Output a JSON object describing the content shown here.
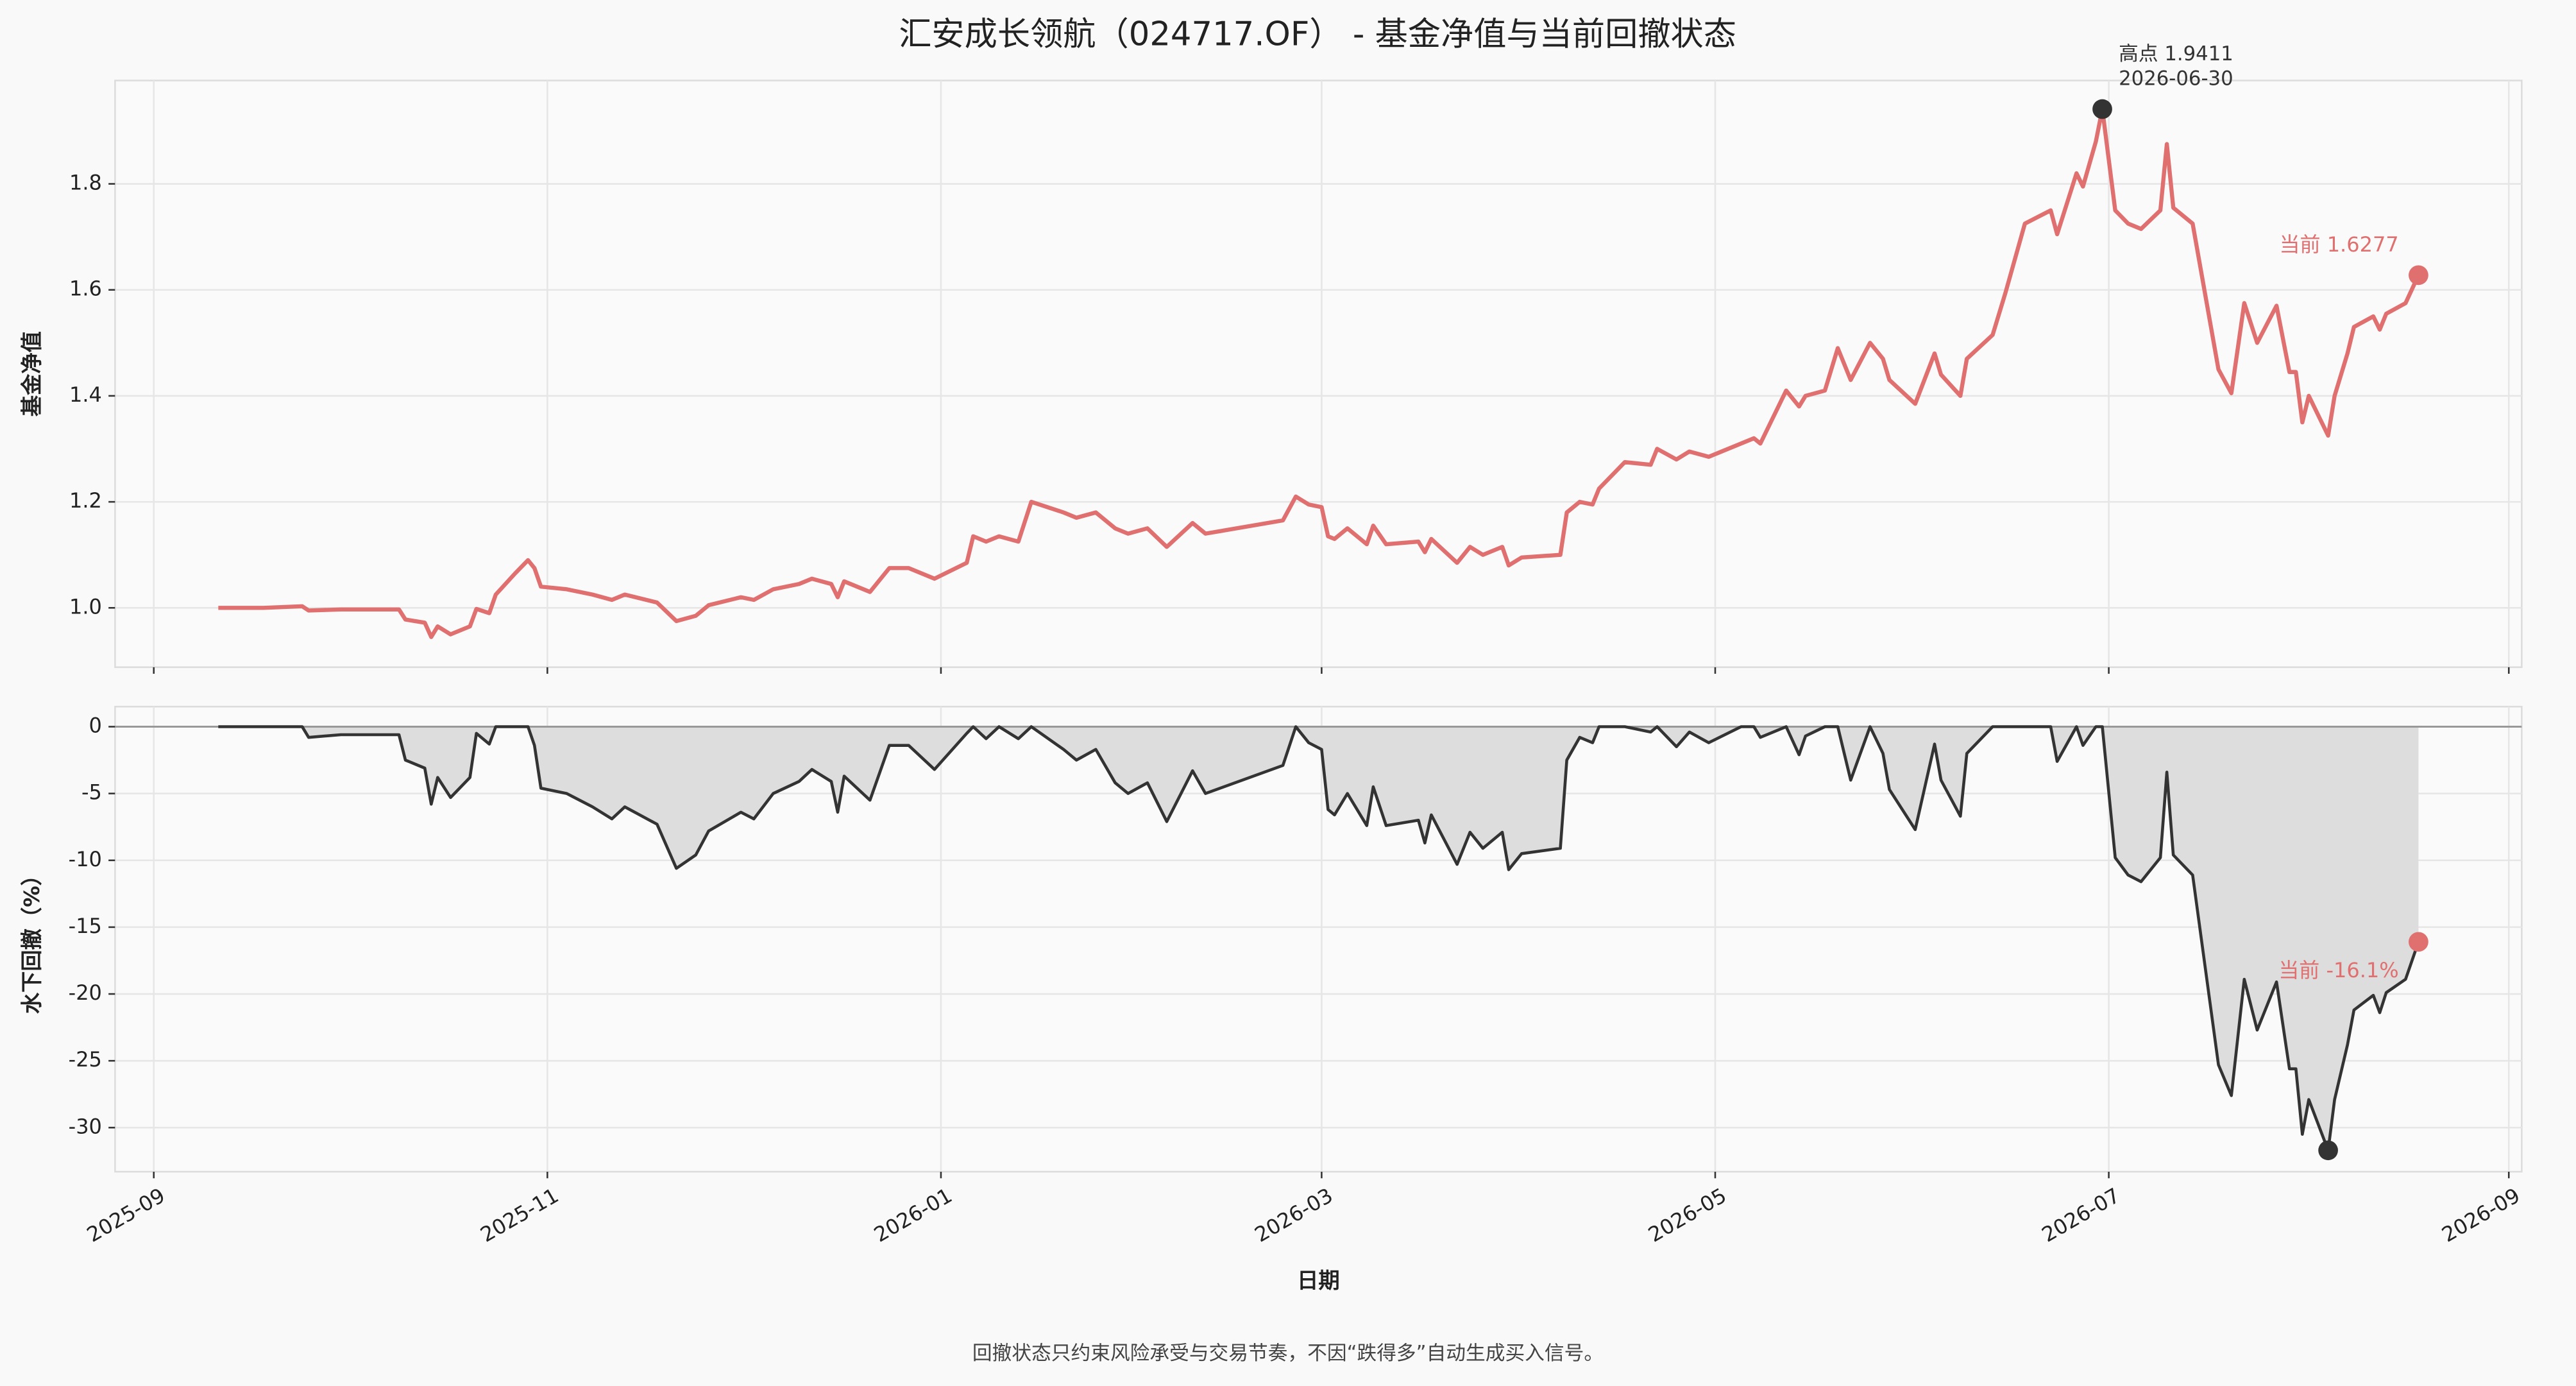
{
  "title": "汇安成长领航（024717.OF） - 基金净值与当前回撤状态",
  "footnote": "回撤状态只约束风险承受与交易节奏，不因“跌得多”自动生成买入信号。",
  "chart_data": [
    {
      "type": "line",
      "ylabel": "基金净值",
      "color": "#e07070",
      "grid": true,
      "xlim": [
        "2025-08-26",
        "2026-09-03"
      ],
      "xticks": [
        "2025-09-01",
        "2025-11-01",
        "2026-01-01",
        "2026-03-01",
        "2026-05-01",
        "2026-07-01",
        "2026-09-01"
      ],
      "ylim": [
        0.888,
        1.995
      ],
      "yticks": [
        {
          "value": 1,
          "label": "1.0"
        },
        1.2,
        1.4,
        1.6,
        1.8
      ],
      "peak_label": [
        "高点 1.9411",
        "2026-06-30"
      ],
      "current_label": "当前 1.6277",
      "peak_color": "#333333",
      "x": [
        "2025-09-11",
        "2025-09-18",
        "2025-09-24",
        "2025-09-25",
        "2025-09-30",
        "2025-10-09",
        "2025-10-10",
        "2025-10-13",
        "2025-10-14",
        "2025-10-15",
        "2025-10-17",
        "2025-10-20",
        "2025-10-21",
        "2025-10-23",
        "2025-10-24",
        "2025-10-27",
        "2025-10-29",
        "2025-10-30",
        "2025-10-31",
        "2025-11-04",
        "2025-11-08",
        "2025-11-11",
        "2025-11-13",
        "2025-11-18",
        "2025-11-21",
        "2025-11-24",
        "2025-11-26",
        "2025-12-01",
        "2025-12-03",
        "2025-12-06",
        "2025-12-10",
        "2025-12-12",
        "2025-12-15",
        "2025-12-16",
        "2025-12-17",
        "2025-12-21",
        "2025-12-24",
        "2025-12-27",
        "2025-12-31",
        "2026-01-05",
        "2026-01-06",
        "2026-01-08",
        "2026-01-10",
        "2026-01-13",
        "2026-01-15",
        "2026-01-20",
        "2026-01-22",
        "2026-01-25",
        "2026-01-28",
        "2026-01-30",
        "2026-02-02",
        "2026-02-05",
        "2026-02-09",
        "2026-02-11",
        "2026-02-23",
        "2026-02-25",
        "2026-02-27",
        "2026-03-01",
        "2026-03-02",
        "2026-03-03",
        "2026-03-05",
        "2026-03-08",
        "2026-03-09",
        "2026-03-11",
        "2026-03-16",
        "2026-03-17",
        "2026-03-18",
        "2026-03-22",
        "2026-03-24",
        "2026-03-26",
        "2026-03-29",
        "2026-03-30",
        "2026-04-01",
        "2026-04-07",
        "2026-04-08",
        "2026-04-10",
        "2026-04-12",
        "2026-04-13",
        "2026-04-17",
        "2026-04-21",
        "2026-04-22",
        "2026-04-25",
        "2026-04-27",
        "2026-04-30",
        "2026-05-05",
        "2026-05-07",
        "2026-05-08",
        "2026-05-12",
        "2026-05-14",
        "2026-05-15",
        "2026-05-18",
        "2026-05-20",
        "2026-05-22",
        "2026-05-25",
        "2026-05-27",
        "2026-05-28",
        "2026-06-01",
        "2026-06-04",
        "2026-06-05",
        "2026-06-08",
        "2026-06-09",
        "2026-06-13",
        "2026-06-15",
        "2026-06-18",
        "2026-06-22",
        "2026-06-23",
        "2026-06-26",
        "2026-06-27",
        "2026-06-29",
        "2026-06-30",
        "2026-07-02",
        "2026-07-04",
        "2026-07-06",
        "2026-07-09",
        "2026-07-10",
        "2026-07-11",
        "2026-07-14",
        "2026-07-18",
        "2026-07-20",
        "2026-07-22",
        "2026-07-24",
        "2026-07-27",
        "2026-07-29",
        "2026-07-30",
        "2026-07-31",
        "2026-08-01",
        "2026-08-04",
        "2026-08-05",
        "2026-08-07",
        "2026-08-08",
        "2026-08-11",
        "2026-08-12",
        "2026-08-13",
        "2026-08-16",
        "2026-08-18"
      ],
      "values": [
        1.0,
        1.0,
        1.003,
        0.995,
        0.997,
        0.997,
        0.978,
        0.972,
        0.945,
        0.965,
        0.95,
        0.965,
        0.998,
        0.99,
        1.025,
        1.065,
        1.09,
        1.075,
        1.04,
        1.035,
        1.025,
        1.015,
        1.025,
        1.01,
        0.975,
        0.985,
        1.005,
        1.02,
        1.015,
        1.035,
        1.045,
        1.055,
        1.045,
        1.02,
        1.05,
        1.03,
        1.075,
        1.075,
        1.055,
        1.085,
        1.135,
        1.125,
        1.135,
        1.125,
        1.2,
        1.18,
        1.17,
        1.18,
        1.15,
        1.14,
        1.15,
        1.115,
        1.16,
        1.14,
        1.165,
        1.21,
        1.195,
        1.19,
        1.135,
        1.13,
        1.15,
        1.12,
        1.155,
        1.12,
        1.125,
        1.105,
        1.13,
        1.085,
        1.115,
        1.1,
        1.115,
        1.08,
        1.095,
        1.1,
        1.18,
        1.2,
        1.195,
        1.225,
        1.275,
        1.27,
        1.3,
        1.28,
        1.295,
        1.285,
        1.31,
        1.32,
        1.31,
        1.41,
        1.38,
        1.4,
        1.41,
        1.49,
        1.43,
        1.5,
        1.47,
        1.43,
        1.385,
        1.48,
        1.44,
        1.4,
        1.47,
        1.515,
        1.595,
        1.725,
        1.75,
        1.705,
        1.82,
        1.795,
        1.88,
        1.9411,
        1.75,
        1.725,
        1.715,
        1.75,
        1.875,
        1.755,
        1.725,
        1.45,
        1.405,
        1.575,
        1.5,
        1.57,
        1.445,
        1.445,
        1.35,
        1.4,
        1.325,
        1.4,
        1.48,
        1.53,
        1.55,
        1.525,
        1.555,
        1.575,
        1.6277
      ]
    },
    {
      "type": "area",
      "ylabel": "水下回撤（%）",
      "xlabel": "日期",
      "color": "#333333",
      "fill": "#dddddd",
      "grid": true,
      "hline": 0,
      "hline_color": "#999999",
      "xlim": [
        "2025-08-26",
        "2026-09-03"
      ],
      "xticks": [
        {
          "value": "2025-09-01",
          "label": "2025-09"
        },
        {
          "value": "2025-11-01",
          "label": "2025-11"
        },
        {
          "value": "2026-01-01",
          "label": "2026-01"
        },
        {
          "value": "2026-03-01",
          "label": "2026-03"
        },
        {
          "value": "2026-05-01",
          "label": "2026-05"
        },
        {
          "value": "2026-07-01",
          "label": "2026-07"
        },
        {
          "value": "2026-09-01",
          "label": "2026-09"
        }
      ],
      "ylim": [
        -33.3,
        1.5
      ],
      "yticks": [
        -30,
        -25,
        -20,
        -15,
        -10,
        -5,
        0
      ],
      "current_label": "当前 -16.1%",
      "current_color": "#e07070",
      "x": [
        "2025-09-11",
        "2025-09-18",
        "2025-09-24",
        "2025-09-25",
        "2025-09-30",
        "2025-10-09",
        "2025-10-10",
        "2025-10-13",
        "2025-10-14",
        "2025-10-15",
        "2025-10-17",
        "2025-10-20",
        "2025-10-21",
        "2025-10-23",
        "2025-10-24",
        "2025-10-27",
        "2025-10-29",
        "2025-10-30",
        "2025-10-31",
        "2025-11-04",
        "2025-11-08",
        "2025-11-11",
        "2025-11-13",
        "2025-11-18",
        "2025-11-21",
        "2025-11-24",
        "2025-11-26",
        "2025-12-01",
        "2025-12-03",
        "2025-12-06",
        "2025-12-10",
        "2025-12-12",
        "2025-12-15",
        "2025-12-16",
        "2025-12-17",
        "2025-12-21",
        "2025-12-24",
        "2025-12-27",
        "2025-12-31",
        "2026-01-05",
        "2026-01-06",
        "2026-01-08",
        "2026-01-10",
        "2026-01-13",
        "2026-01-15",
        "2026-01-20",
        "2026-01-22",
        "2026-01-25",
        "2026-01-28",
        "2026-01-30",
        "2026-02-02",
        "2026-02-05",
        "2026-02-09",
        "2026-02-11",
        "2026-02-23",
        "2026-02-25",
        "2026-02-27",
        "2026-03-01",
        "2026-03-02",
        "2026-03-03",
        "2026-03-05",
        "2026-03-08",
        "2026-03-09",
        "2026-03-11",
        "2026-03-16",
        "2026-03-17",
        "2026-03-18",
        "2026-03-22",
        "2026-03-24",
        "2026-03-26",
        "2026-03-29",
        "2026-03-30",
        "2026-04-01",
        "2026-04-07",
        "2026-04-08",
        "2026-04-10",
        "2026-04-12",
        "2026-04-13",
        "2026-04-17",
        "2026-04-21",
        "2026-04-22",
        "2026-04-25",
        "2026-04-27",
        "2026-04-30",
        "2026-05-05",
        "2026-05-07",
        "2026-05-08",
        "2026-05-12",
        "2026-05-14",
        "2026-05-15",
        "2026-05-18",
        "2026-05-20",
        "2026-05-22",
        "2026-05-25",
        "2026-05-27",
        "2026-05-28",
        "2026-06-01",
        "2026-06-04",
        "2026-06-05",
        "2026-06-08",
        "2026-06-09",
        "2026-06-13",
        "2026-06-15",
        "2026-06-18",
        "2026-06-22",
        "2026-06-23",
        "2026-06-26",
        "2026-06-27",
        "2026-06-29",
        "2026-06-30",
        "2026-07-02",
        "2026-07-04",
        "2026-07-06",
        "2026-07-09",
        "2026-07-10",
        "2026-07-11",
        "2026-07-14",
        "2026-07-18",
        "2026-07-20",
        "2026-07-22",
        "2026-07-24",
        "2026-07-27",
        "2026-07-29",
        "2026-07-30",
        "2026-07-31",
        "2026-08-01",
        "2026-08-04",
        "2026-08-05",
        "2026-08-07",
        "2026-08-08",
        "2026-08-11",
        "2026-08-12",
        "2026-08-13",
        "2026-08-16",
        "2026-08-18"
      ],
      "values": [
        0,
        0,
        0,
        -0.8,
        -0.6,
        -0.6,
        -2.5,
        -3.1,
        -5.8,
        -3.8,
        -5.3,
        -3.8,
        -0.5,
        -1.3,
        0,
        0,
        0,
        -1.4,
        -4.6,
        -5.0,
        -6.0,
        -6.9,
        -6.0,
        -7.3,
        -10.6,
        -9.6,
        -7.8,
        -6.4,
        -6.9,
        -5.0,
        -4.1,
        -3.2,
        -4.1,
        -6.4,
        -3.7,
        -5.5,
        -1.4,
        -1.4,
        -3.2,
        -0.5,
        0,
        -0.9,
        0,
        -0.9,
        0,
        -1.7,
        -2.5,
        -1.7,
        -4.2,
        -5.0,
        -4.2,
        -7.1,
        -3.3,
        -5.0,
        -2.9,
        0,
        -1.2,
        -1.7,
        -6.2,
        -6.6,
        -5.0,
        -7.4,
        -4.5,
        -7.4,
        -7.0,
        -8.7,
        -6.6,
        -10.3,
        -7.9,
        -9.1,
        -7.9,
        -10.7,
        -9.5,
        -9.1,
        -2.5,
        -0.8,
        -1.2,
        0,
        0,
        -0.4,
        0,
        -1.5,
        -0.4,
        -1.2,
        0,
        0,
        -0.8,
        0,
        -2.1,
        -0.7,
        0,
        0,
        -4.0,
        0,
        -2.0,
        -4.7,
        -7.7,
        -1.3,
        -4.0,
        -6.7,
        -2.0,
        0,
        0,
        0,
        0,
        -2.6,
        0,
        -1.4,
        0,
        0,
        -9.8,
        -11.1,
        -11.6,
        -9.8,
        -3.4,
        -9.6,
        -11.1,
        -25.3,
        -27.6,
        -18.9,
        -22.7,
        -19.1,
        -25.6,
        -25.6,
        -30.5,
        -27.9,
        -31.7,
        -27.9,
        -23.8,
        -21.2,
        -20.1,
        -21.4,
        -19.9,
        -18.9,
        -16.1
      ]
    }
  ]
}
